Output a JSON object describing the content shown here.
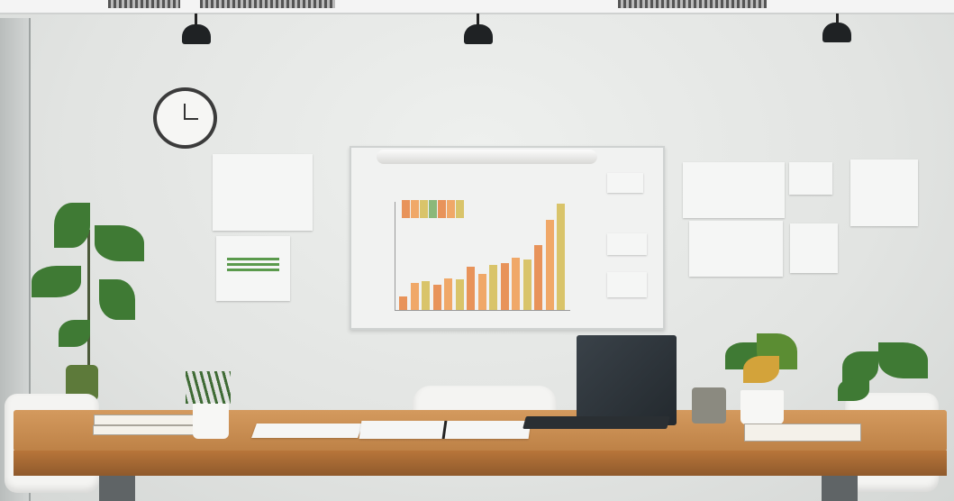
{
  "scene": {
    "wall_color": "#e3e5e3",
    "table_color": "#c98a4f",
    "chart_bar_colors": [
      "#e8935a",
      "#f0a868",
      "#d9c46a",
      "#8bb87a"
    ],
    "icons": [
      "ceiling-lamp",
      "wall-clock",
      "whiteboard",
      "laptop",
      "potted-plant",
      "chair",
      "notebook"
    ]
  }
}
